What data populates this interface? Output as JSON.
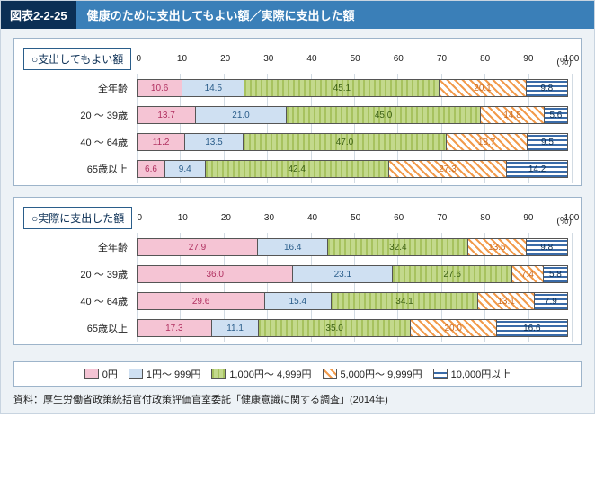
{
  "title_tag": "図表2-2-25",
  "title_text": "健康のために支出してもよい額／実際に支出した額",
  "axis": {
    "ticks": [
      0,
      10,
      20,
      30,
      40,
      50,
      60,
      70,
      80,
      90,
      100
    ],
    "unit": "(％)"
  },
  "grid_color": "#d2dbe3",
  "colors": {
    "pink": "#f5c4d4",
    "blue": "#cfe0f2",
    "green": "#c3d98c",
    "orange": "#f29b4c",
    "navy": "#3a6ba8",
    "border": "#555555"
  },
  "categories": [
    {
      "key": "pink",
      "label": "0円",
      "class": "p-pink"
    },
    {
      "key": "blue",
      "label": "1円～ 999円",
      "class": "p-blue"
    },
    {
      "key": "green",
      "label": "1,000円～ 4,999円",
      "class": "p-green"
    },
    {
      "key": "orange",
      "label": "5,000円～ 9,999円",
      "class": "p-orange"
    },
    {
      "key": "navy",
      "label": "10,000円以上",
      "class": "p-navy"
    }
  ],
  "panels": [
    {
      "title": "○支出してもよい額",
      "rows": [
        {
          "label": "全年齢",
          "values": [
            10.6,
            14.5,
            45.1,
            20.1,
            9.8
          ]
        },
        {
          "label": "20 ～ 39歳",
          "values": [
            13.7,
            21.0,
            45.0,
            14.8,
            5.6
          ]
        },
        {
          "label": "40 ～ 64歳",
          "values": [
            11.2,
            13.5,
            47.0,
            18.7,
            9.5
          ]
        },
        {
          "label": "65歳以上",
          "values": [
            6.6,
            9.4,
            42.4,
            27.3,
            14.2
          ]
        }
      ]
    },
    {
      "title": "○実際に支出した額",
      "rows": [
        {
          "label": "全年齢",
          "values": [
            27.9,
            16.4,
            32.4,
            13.5,
            9.8
          ]
        },
        {
          "label": "20 ～ 39歳",
          "values": [
            36.0,
            23.1,
            27.6,
            7.4,
            5.8
          ]
        },
        {
          "label": "40 ～ 64歳",
          "values": [
            29.6,
            15.4,
            34.1,
            13.1,
            7.9
          ]
        },
        {
          "label": "65歳以上",
          "values": [
            17.3,
            11.1,
            35.0,
            20.0,
            16.6
          ]
        }
      ]
    }
  ],
  "source": "資料：厚生労働省政策統括官付政策評価官室委託「健康意識に関する調査」(2014年)"
}
